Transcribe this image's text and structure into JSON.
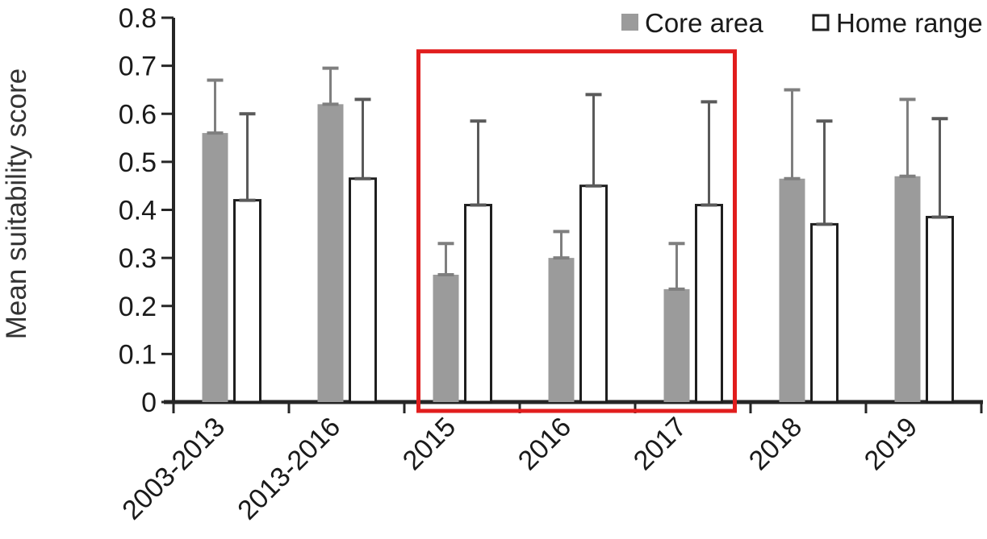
{
  "chart_data": {
    "type": "bar",
    "title": "",
    "xlabel": "",
    "ylabel": "Mean suitability score",
    "ylim": [
      0,
      0.8
    ],
    "yticks": [
      0,
      0.1,
      0.2,
      0.3,
      0.4,
      0.5,
      0.6,
      0.7,
      0.8
    ],
    "ytick_labels": [
      "0",
      "0.1",
      "0.2",
      "0.3",
      "0.4",
      "0.5",
      "0.6",
      "0.7",
      "0.8"
    ],
    "categories": [
      "2003-2013",
      "2013-2016",
      "2015",
      "2016",
      "2017",
      "2018",
      "2019"
    ],
    "series": [
      {
        "name": "Core area",
        "fill": "#9b9b9b",
        "stroke": "#9b9b9b",
        "error_color": "#7f7f7f",
        "values": [
          0.56,
          0.62,
          0.265,
          0.3,
          0.235,
          0.465,
          0.47
        ],
        "error_upper_tops": [
          0.67,
          0.695,
          0.33,
          0.355,
          0.33,
          0.65,
          0.63
        ]
      },
      {
        "name": "Home range",
        "fill": "#ffffff",
        "stroke": "#1f1f1f",
        "error_color": "#5a5a5a",
        "values": [
          0.42,
          0.465,
          0.41,
          0.45,
          0.41,
          0.37,
          0.385
        ],
        "error_upper_tops": [
          0.6,
          0.63,
          0.585,
          0.64,
          0.625,
          0.585,
          0.59
        ]
      }
    ],
    "error_bars": "upper only, with end caps",
    "grid": false,
    "legend": {
      "position": "top-right",
      "entries": [
        "Core area",
        "Home range"
      ]
    },
    "axis_color": "#262626",
    "tick_label_color": "#1a1a1a",
    "annotations": [
      {
        "type": "highlight-rect",
        "color": "#e11d1d",
        "categories_covered": [
          "2015",
          "2016",
          "2017"
        ],
        "y_top_value": 0.73,
        "note": "red rectangle outlining the 2015-2017 groups"
      }
    ]
  }
}
